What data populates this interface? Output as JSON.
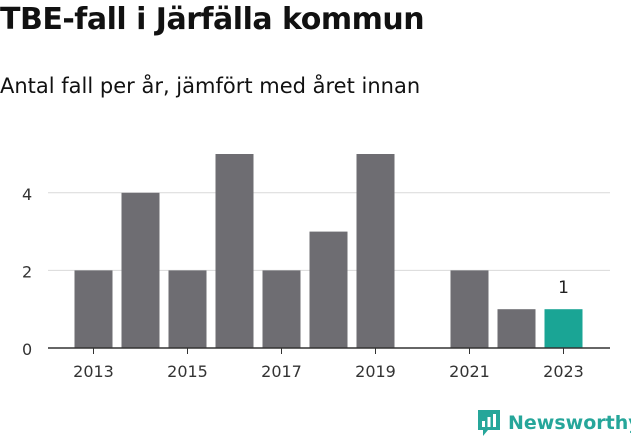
{
  "title": "TBE-fall i Järfälla kommun",
  "subtitle": "Antal fall per år, jämfört med året innan",
  "brand": "Newsworthy",
  "colors": {
    "bar": "#6e6d72",
    "highlight": "#1aa595",
    "grid": "#d9d9d9",
    "axis": "#333333",
    "brand": "#26a69a"
  },
  "chart_data": {
    "type": "bar",
    "title": "TBE-fall i Järfälla kommun",
    "subtitle": "Antal fall per år, jämfört med året innan",
    "x": [
      2013,
      2014,
      2015,
      2016,
      2017,
      2018,
      2019,
      2020,
      2021,
      2022,
      2023
    ],
    "values": [
      2,
      4,
      2,
      5,
      2,
      3,
      5,
      0,
      2,
      1,
      1
    ],
    "x_tick_labels": [
      "2013",
      "2015",
      "2017",
      "2019",
      "2021",
      "2023"
    ],
    "y_ticks": [
      0,
      2,
      4
    ],
    "ylim": [
      0,
      5
    ],
    "grid": true,
    "highlight": {
      "year": 2023,
      "label": "1"
    }
  }
}
